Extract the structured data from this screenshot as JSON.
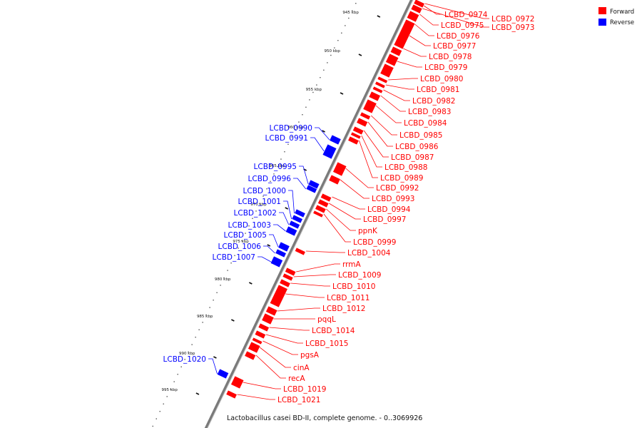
{
  "caption": "Lactobacillus casei BD-II, complete genome. - 0..3069926",
  "legend": [
    {
      "label": "Forward",
      "color": "#ff0000"
    },
    {
      "label": "Reverse",
      "color": "#0000ff"
    }
  ],
  "colors": {
    "forward": "#ff0000",
    "reverse": "#0000ff",
    "backbone": "#7a7a7a"
  },
  "ticks": [
    "945 kbp",
    "950 kbp",
    "955 kbp",
    "960 kbp",
    "965 kbp",
    "970 kbp",
    "975 kbp",
    "980 kbp",
    "985 kbp",
    "990 kbp",
    "995 kbp"
  ],
  "forward_genes": [
    "LCBD_0972",
    "LCBD_0973",
    "LCBD_0974",
    "LCBD_0975",
    "LCBD_0976",
    "LCBD_0977",
    "LCBD_0978",
    "LCBD_0979",
    "LCBD_0980",
    "LCBD_0981",
    "LCBD_0982",
    "LCBD_0983",
    "LCBD_0984",
    "LCBD_0985",
    "LCBD_0986",
    "LCBD_0987",
    "LCBD_0988",
    "LCBD_0989",
    "LCBD_0992",
    "LCBD_0993",
    "LCBD_0994",
    "LCBD_0997",
    "ppnK",
    "LCBD_0999",
    "LCBD_1004",
    "rrmA",
    "LCBD_1009",
    "LCBD_1010",
    "LCBD_1011",
    "LCBD_1012",
    "pqqL",
    "LCBD_1014",
    "LCBD_1015",
    "pgsA",
    "cinA",
    "recA",
    "LCBD_1019",
    "LCBD_1021"
  ],
  "reverse_genes": [
    "LCBD_0990",
    "LCBD_0991",
    "LCBD_0995",
    "LCBD_0996",
    "LCBD_1000",
    "LCBD_1001",
    "LCBD_1002",
    "LCBD_1003",
    "LCBD_1005",
    "LCBD_1006",
    "LCBD_1007",
    "LCBD_1020"
  ]
}
